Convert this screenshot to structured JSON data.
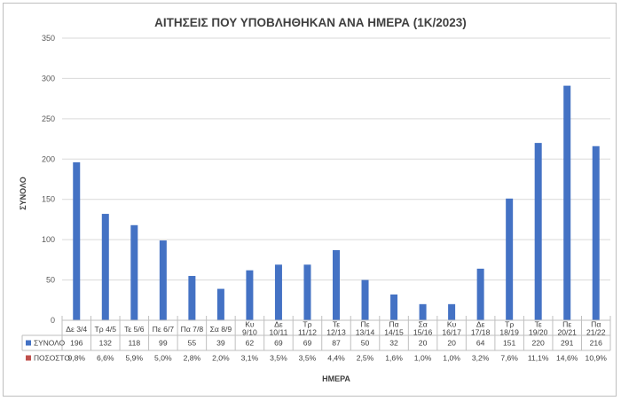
{
  "chart_data": {
    "type": "bar",
    "title": "ΑΙΤΗΣΕΙΣ ΠΟΥ ΥΠΟΒΛΗΘΗΚΑΝ ΑΝΑ ΗΜΕΡΑ (1Κ/2023)",
    "xlabel": "ΗΜΕΡΑ",
    "ylabel": "ΣΥΝΟΛΟ",
    "ylim": [
      0,
      350
    ],
    "yticks": [
      0,
      50,
      100,
      150,
      200,
      250,
      300,
      350
    ],
    "grid": true,
    "categories": [
      [
        "Δε 3/4"
      ],
      [
        "Τρ 4/5"
      ],
      [
        "Τε 5/6"
      ],
      [
        "Πε 6/7"
      ],
      [
        "Πα 7/8"
      ],
      [
        "Σα 8/9"
      ],
      [
        "Κυ",
        "9/10"
      ],
      [
        "Δε",
        "10/11"
      ],
      [
        "Τρ",
        "11/12"
      ],
      [
        "Τε",
        "12/13"
      ],
      [
        "Πε",
        "13/14"
      ],
      [
        "Πα",
        "14/15"
      ],
      [
        "Σα",
        "15/16"
      ],
      [
        "Κυ",
        "16/17"
      ],
      [
        "Δε",
        "17/18"
      ],
      [
        "Τρ",
        "18/19"
      ],
      [
        "Τε",
        "19/20"
      ],
      [
        "Πε",
        "20/21"
      ],
      [
        "Πα",
        "21/22"
      ]
    ],
    "series": [
      {
        "name": "ΣΥΝΟΛΟ",
        "color": "#4472C4",
        "values": [
          196,
          132,
          118,
          99,
          55,
          39,
          62,
          69,
          69,
          87,
          50,
          32,
          20,
          20,
          64,
          151,
          220,
          291,
          216
        ]
      }
    ],
    "table_rows": [
      {
        "name": "ΣΥΝΟΛΟ",
        "color": "#4472C4",
        "values": [
          "196",
          "132",
          "118",
          "99",
          "55",
          "39",
          "62",
          "69",
          "69",
          "87",
          "50",
          "32",
          "20",
          "20",
          "64",
          "151",
          "220",
          "291",
          "216"
        ]
      },
      {
        "name": "ΠΟΣΟΣΤΟ",
        "color": "#C0504D",
        "values": [
          "9,8%",
          "6,6%",
          "5,9%",
          "5,0%",
          "2,8%",
          "2,0%",
          "3,1%",
          "3,5%",
          "3,5%",
          "4,4%",
          "2,5%",
          "1,6%",
          "1,0%",
          "1,0%",
          "3,2%",
          "7,6%",
          "11,1%",
          "14,6%",
          "10,9%"
        ]
      }
    ]
  }
}
